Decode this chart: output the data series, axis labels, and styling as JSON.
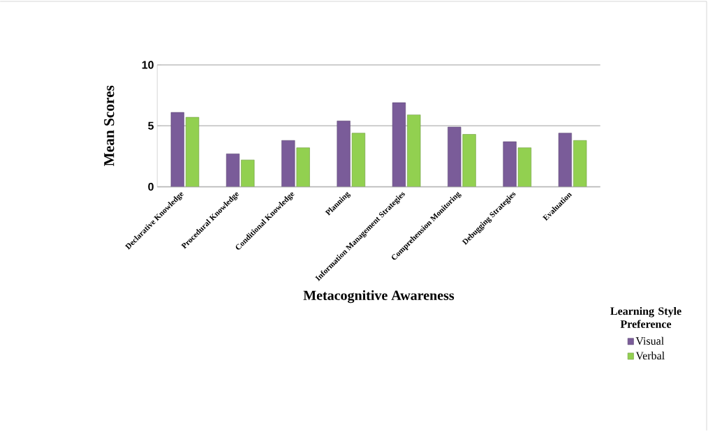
{
  "chart_data": {
    "type": "bar",
    "xlabel": "Metacognitive Awareness",
    "ylabel": "Mean Scores",
    "legend_title": "Learning  Style Preference",
    "categories": [
      "Declarative Knowledge",
      "Procedural Knowledge",
      "Conditional Knowledge",
      "Planning",
      "Information Management Strategies",
      "Comprehension Monitoring",
      "Debugging Strategies",
      "Evaluation"
    ],
    "series": [
      {
        "name": "Visual",
        "color": "#7a5c99",
        "values": [
          6.1,
          2.7,
          3.8,
          5.4,
          6.9,
          4.9,
          3.7,
          4.4
        ]
      },
      {
        "name": "Verbal",
        "color": "#92d050",
        "values": [
          5.7,
          2.2,
          3.2,
          4.4,
          5.9,
          4.3,
          3.2,
          3.8
        ]
      }
    ],
    "ylim": [
      0,
      10
    ],
    "yticks": [
      0,
      5,
      10
    ],
    "grid": "y",
    "legend": "bottom right"
  }
}
